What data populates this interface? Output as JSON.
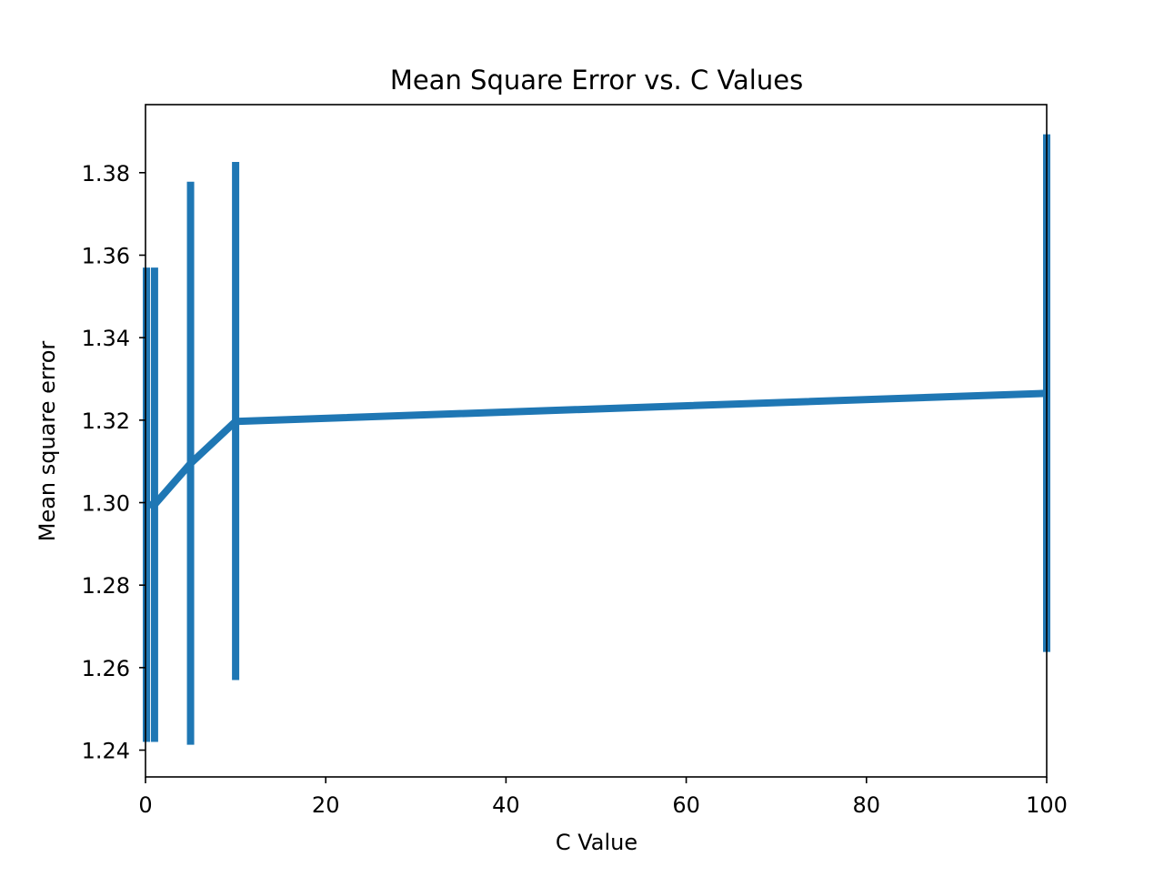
{
  "chart_data": {
    "type": "line",
    "title": "Mean Square Error vs. C Values",
    "xlabel": "C Value",
    "ylabel": "Mean square error",
    "xlim": [
      0,
      100
    ],
    "ylim": [
      1.2335,
      1.3965
    ],
    "x_ticks": [
      0,
      20,
      40,
      60,
      80,
      100
    ],
    "y_ticks": [
      1.24,
      1.26,
      1.28,
      1.3,
      1.32,
      1.34,
      1.36,
      1.38
    ],
    "x_tick_labels": [
      "0",
      "20",
      "40",
      "60",
      "80",
      "100"
    ],
    "y_tick_labels": [
      "1.24",
      "1.26",
      "1.28",
      "1.30",
      "1.32",
      "1.34",
      "1.36",
      "1.38"
    ],
    "grid": false,
    "series": [
      {
        "color": "#1f77b4",
        "x": [
          0.1,
          1,
          5,
          10,
          100
        ],
        "y": [
          1.2995,
          1.2995,
          1.3095,
          1.3197,
          1.3265
        ],
        "error_low": [
          1.242,
          1.242,
          1.2413,
          1.257,
          1.2638
        ],
        "error_high": [
          1.357,
          1.357,
          1.3778,
          1.3826,
          1.3893
        ]
      }
    ]
  }
}
